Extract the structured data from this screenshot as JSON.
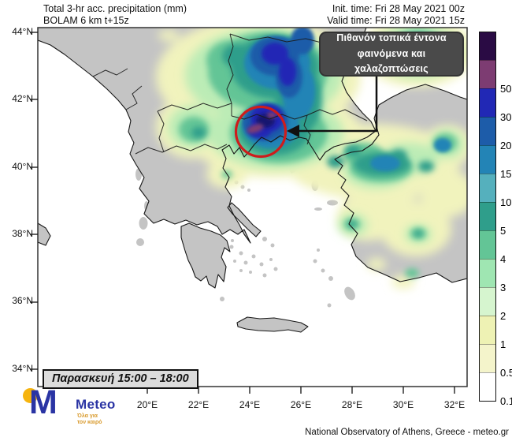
{
  "header": {
    "title_line1": "Total 3-hr acc. precipitation (mm)",
    "title_line2": "BOLAM 6 km t+15z",
    "init_time": "Init. time: Fri 28 May 2021 00z",
    "valid_time": "Valid time: Fri 28 May 2021 15z"
  },
  "annotation": {
    "line1": "Πιθανόν τοπικά έντονα",
    "line2": "φαινόμενα και χαλαζοπτώσεις"
  },
  "time_label": "Παρασκευή 15:00 – 18:00",
  "axes": {
    "lat": [
      "44°N",
      "42°N",
      "40°N",
      "38°N",
      "36°N",
      "34°N"
    ],
    "lon": [
      "20°E",
      "22°E",
      "24°E",
      "26°E",
      "28°E",
      "30°E",
      "32°E"
    ]
  },
  "colorbar": {
    "units": "mm",
    "segments": [
      {
        "color": "#2a0b44",
        "label": ""
      },
      {
        "color": "#7d3c72",
        "label": "50"
      },
      {
        "color": "#2128b5",
        "label": "30"
      },
      {
        "color": "#1d5ca9",
        "label": "20"
      },
      {
        "color": "#2384b6",
        "label": "15"
      },
      {
        "color": "#55b0bd",
        "label": "10"
      },
      {
        "color": "#2f9e8b",
        "label": "5"
      },
      {
        "color": "#63c596",
        "label": "4"
      },
      {
        "color": "#9fe6b2",
        "label": "3"
      },
      {
        "color": "#d6f5cf",
        "label": "2"
      },
      {
        "color": "#eef2b4",
        "label": "1"
      },
      {
        "color": "#f4f4cb",
        "label": "0.5"
      },
      {
        "color": "#ffffff",
        "label": "0.1"
      }
    ]
  },
  "map": {
    "region": "Greece and surrounding area",
    "highlight_color": "#ce1c1c",
    "land_color": "#c4c4c4",
    "sea_color": "#ffffff"
  },
  "logo": {
    "name": "Meteo",
    "m_glyph": "M",
    "tagline_line1": "Όλα για",
    "tagline_line2": "τον καιρό"
  },
  "attribution": "National Observatory of Athens, Greece - meteo.gr"
}
